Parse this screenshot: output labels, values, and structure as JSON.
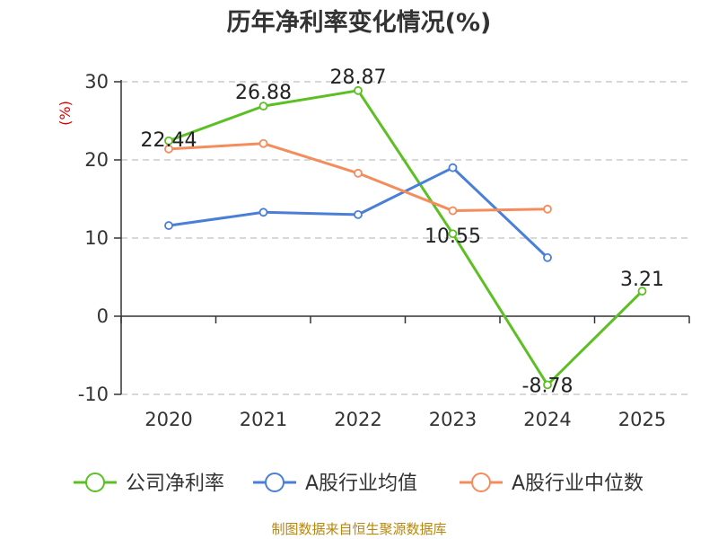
{
  "chart_data": {
    "type": "line",
    "title": "历年净利率变化情况(%)",
    "ylabel": "(%)",
    "xlabel": "",
    "categories": [
      "2020",
      "2021",
      "2022",
      "2023",
      "2024",
      "2025"
    ],
    "ylim": [
      -10,
      30
    ],
    "yticks": [
      30,
      20,
      10,
      0,
      -10
    ],
    "grid": true,
    "legend_position": "bottom",
    "series": [
      {
        "name": "公司净利率",
        "color": "#5cc024",
        "values": [
          22.44,
          26.88,
          28.87,
          10.55,
          -8.78,
          3.21
        ],
        "labels": [
          "22.44",
          "26.88",
          "28.87",
          "10.55",
          "-8.78",
          "3.21"
        ]
      },
      {
        "name": "A股行业均值",
        "color": "#4a7fd8",
        "values": [
          11.6,
          13.3,
          13.0,
          19.0,
          7.5,
          null
        ],
        "labels": []
      },
      {
        "name": "A股行业中位数",
        "color": "#f48c5c",
        "values": [
          21.4,
          22.1,
          18.3,
          13.5,
          13.7,
          null
        ],
        "labels": []
      }
    ],
    "source": "制图数据来自恒生聚源数据库"
  }
}
